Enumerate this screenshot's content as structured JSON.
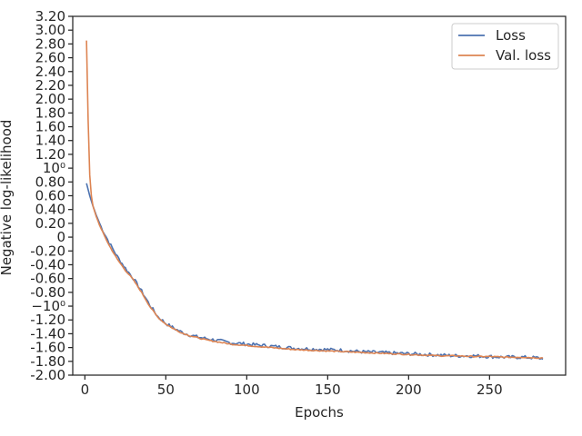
{
  "chart_data": {
    "type": "line",
    "xlabel": "Epochs",
    "ylabel": "Negative log-likelihood",
    "xlim": [
      -7.5,
      297
    ],
    "ylim": [
      -2.0,
      3.2
    ],
    "x_ticks": [
      0,
      50,
      100,
      150,
      200,
      250
    ],
    "x_tick_labels": [
      "0",
      "50",
      "100",
      "150",
      "200",
      "250"
    ],
    "y_ticks": [
      -2.0,
      -1.8,
      -1.6,
      -1.4,
      -1.2,
      -1.0,
      -0.8,
      -0.6,
      -0.4,
      -0.2,
      0,
      0.2,
      0.4,
      0.6,
      0.8,
      1.0,
      1.2,
      1.4,
      1.6,
      1.8,
      2.0,
      2.2,
      2.4,
      2.6,
      2.8,
      3.0,
      3.2
    ],
    "y_tick_labels": [
      "-2.00",
      "-1.80",
      "-1.60",
      "-1.40",
      "-1.20",
      "−10⁰",
      "-0.80",
      "-0.60",
      "-0.40",
      "-0.20",
      "0",
      "0.20",
      "0.40",
      "0.60",
      "0.80",
      "10⁰",
      "1.20",
      "1.40",
      "1.60",
      "1.80",
      "2.00",
      "2.20",
      "2.40",
      "2.60",
      "2.80",
      "3.00",
      "3.20"
    ],
    "legend_placement": "upper-right",
    "grid": false,
    "series": [
      {
        "name": "Loss",
        "color": "#4c72b0",
        "x": [
          1,
          3,
          5,
          7,
          10,
          15,
          20,
          25,
          30,
          35,
          40,
          45,
          50,
          55,
          60,
          65,
          70,
          75,
          80,
          85,
          90,
          95,
          100,
          110,
          120,
          130,
          140,
          150,
          160,
          170,
          180,
          190,
          200,
          210,
          220,
          230,
          240,
          250,
          260,
          270,
          280,
          283
        ],
        "values": [
          0.78,
          0.6,
          0.45,
          0.32,
          0.15,
          -0.08,
          -0.28,
          -0.45,
          -0.6,
          -0.78,
          -0.98,
          -1.15,
          -1.25,
          -1.32,
          -1.38,
          -1.42,
          -1.45,
          -1.47,
          -1.49,
          -1.51,
          -1.53,
          -1.54,
          -1.55,
          -1.57,
          -1.59,
          -1.61,
          -1.62,
          -1.63,
          -1.64,
          -1.66,
          -1.67,
          -1.68,
          -1.69,
          -1.7,
          -1.71,
          -1.72,
          -1.72,
          -1.73,
          -1.74,
          -1.74,
          -1.75,
          -1.77
        ],
        "noise": 0.025
      },
      {
        "name": "Val. loss",
        "color": "#dd8452",
        "x": [
          1,
          2,
          3,
          4,
          5,
          7,
          10,
          15,
          20,
          25,
          30,
          35,
          40,
          45,
          50,
          55,
          60,
          65,
          70,
          75,
          80,
          85,
          90,
          95,
          100,
          110,
          120,
          130,
          140,
          150,
          160,
          170,
          180,
          190,
          200,
          210,
          220,
          230,
          240,
          250,
          260,
          270,
          280,
          283
        ],
        "values": [
          2.85,
          1.7,
          0.9,
          0.6,
          0.45,
          0.3,
          0.12,
          -0.12,
          -0.32,
          -0.48,
          -0.62,
          -0.8,
          -1.0,
          -1.16,
          -1.26,
          -1.33,
          -1.39,
          -1.43,
          -1.46,
          -1.49,
          -1.51,
          -1.53,
          -1.55,
          -1.56,
          -1.57,
          -1.59,
          -1.61,
          -1.63,
          -1.64,
          -1.65,
          -1.66,
          -1.67,
          -1.68,
          -1.69,
          -1.7,
          -1.71,
          -1.72,
          -1.72,
          -1.73,
          -1.73,
          -1.74,
          -1.74,
          -1.75,
          -1.75
        ],
        "noise": 0.008
      }
    ]
  }
}
